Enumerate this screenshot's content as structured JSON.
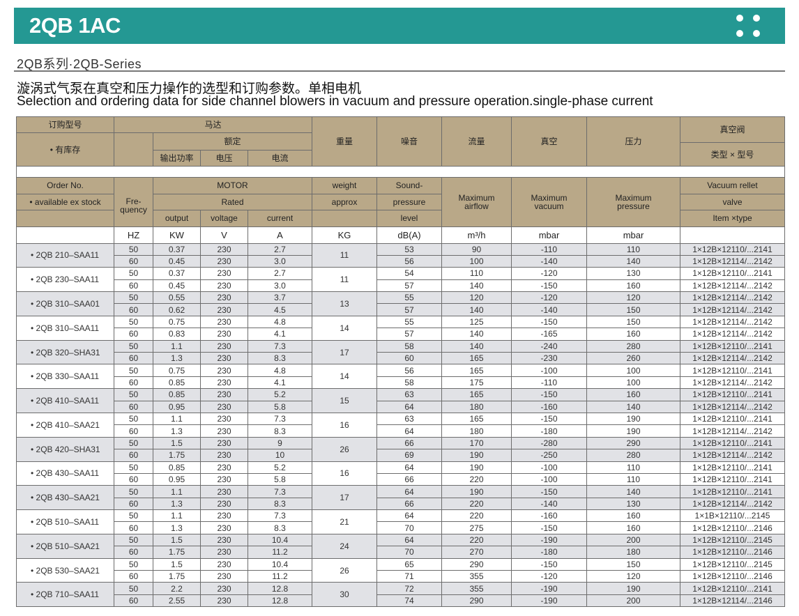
{
  "header": {
    "title": "2QB 1AC",
    "menu_icon": "four-dots-icon",
    "brand_color": "#249893"
  },
  "series": "2QB系列·2QB-Series",
  "title_cn": "漩涡式气泵在真空和压力操作的选型和订购参数。单相电机",
  "title_en": "Selection and ordering data for side channel blowers in vacuum and pressure operation.single-phase current",
  "table_cn": {
    "order": "订购型号",
    "stock": "• 有库存",
    "motor": "马达",
    "rated": "额定",
    "output": "输出功率",
    "voltage": "电压",
    "current": "电流",
    "weight": "重量",
    "noise": "噪音",
    "airflow": "流量",
    "vacuum": "真空",
    "pressure": "压力",
    "valve": "真空阀",
    "valve_type": "类型 × 型号"
  },
  "table_en": {
    "order": "Order No.",
    "stock": "• available ex stock",
    "frequency": "Fre-\nquency",
    "motor": "MOTOR",
    "rated": "Rated",
    "output": "output",
    "voltage": "voltage",
    "current": "current",
    "weight": "weight",
    "approx": "approx",
    "sound1": "Sound-",
    "sound2": "pressure",
    "sound3": "level",
    "airflow": "Maximum airflow",
    "vacuum": "Maximum vacuum",
    "pressure": "Maximum pressure",
    "valve1": "Vacuum rellet",
    "valve2": "valve",
    "valve3": "Item ×type"
  },
  "units": [
    "HZ",
    "KW",
    "V",
    "A",
    "KG",
    "dB(A)",
    "m³/h",
    "mbar",
    "mbar",
    ""
  ],
  "models": [
    {
      "order": "• 2QB 210–SAA11",
      "weight": "11",
      "rows": [
        [
          "50",
          "0.37",
          "230",
          "2.7",
          "53",
          "90",
          "-110",
          "110",
          "1×12B×12110/...2141"
        ],
        [
          "60",
          "0.45",
          "230",
          "3.0",
          "56",
          "100",
          "-140",
          "140",
          "1×12B×12114/...2142"
        ]
      ]
    },
    {
      "order": "• 2QB 230–SAA11",
      "weight": "11",
      "rows": [
        [
          "50",
          "0.37",
          "230",
          "2.7",
          "54",
          "110",
          "-120",
          "130",
          "1×12B×12110/...2141"
        ],
        [
          "60",
          "0.45",
          "230",
          "3.0",
          "57",
          "140",
          "-150",
          "160",
          "1×12B×12114/...2142"
        ]
      ]
    },
    {
      "order": "• 2QB 310–SAA01",
      "weight": "13",
      "rows": [
        [
          "50",
          "0.55",
          "230",
          "3.7",
          "55",
          "120",
          "-120",
          "120",
          "1×12B×12114/...2142"
        ],
        [
          "60",
          "0.62",
          "230",
          "4.5",
          "57",
          "140",
          "-140",
          "150",
          "1×12B×12114/...2142"
        ]
      ]
    },
    {
      "order": "• 2QB 310–SAA11",
      "weight": "14",
      "rows": [
        [
          "50",
          "0.75",
          "230",
          "4.8",
          "55",
          "125",
          "-150",
          "150",
          "1×12B×12114/...2142"
        ],
        [
          "60",
          "0.83",
          "230",
          "4.1",
          "57",
          "140",
          "-165",
          "160",
          "1×12B×12114/...2142"
        ]
      ]
    },
    {
      "order": "• 2QB 320–SHA31",
      "weight": "17",
      "rows": [
        [
          "50",
          "1.1",
          "230",
          "7.3",
          "58",
          "140",
          "-240",
          "280",
          "1×12B×12110/...2141"
        ],
        [
          "60",
          "1.3",
          "230",
          "8.3",
          "60",
          "165",
          "-230",
          "260",
          "1×12B×12114/...2142"
        ]
      ]
    },
    {
      "order": "• 2QB 330–SAA11",
      "weight": "14",
      "rows": [
        [
          "50",
          "0.75",
          "230",
          "4.8",
          "56",
          "165",
          "-100",
          "100",
          "1×12B×12110/...2141"
        ],
        [
          "60",
          "0.85",
          "230",
          "4.1",
          "58",
          "175",
          "-110",
          "100",
          "1×12B×12114/...2142"
        ]
      ]
    },
    {
      "order": "• 2QB 410–SAA11",
      "weight": "15",
      "rows": [
        [
          "50",
          "0.85",
          "230",
          "5.2",
          "63",
          "165",
          "-150",
          "160",
          "1×12B×12110/...2141"
        ],
        [
          "60",
          "0.95",
          "230",
          "5.8",
          "64",
          "180",
          "-160",
          "140",
          "1×12B×12114/...2142"
        ]
      ]
    },
    {
      "order": "• 2QB 410–SAA21",
      "weight": "16",
      "rows": [
        [
          "50",
          "1.1",
          "230",
          "7.3",
          "63",
          "165",
          "-150",
          "190",
          "1×12B×12110/...2141"
        ],
        [
          "60",
          "1.3",
          "230",
          "8.3",
          "64",
          "180",
          "-180",
          "190",
          "1×12B×12114/...2142"
        ]
      ]
    },
    {
      "order": "• 2QB 420–SHA31",
      "weight": "26",
      "rows": [
        [
          "50",
          "1.5",
          "230",
          "9",
          "66",
          "170",
          "-280",
          "290",
          "1×12B×12110/...2141"
        ],
        [
          "60",
          "1.75",
          "230",
          "10",
          "69",
          "190",
          "-250",
          "280",
          "1×12B×12114/...2142"
        ]
      ]
    },
    {
      "order": "• 2QB 430–SAA11",
      "weight": "16",
      "rows": [
        [
          "50",
          "0.85",
          "230",
          "5.2",
          "64",
          "190",
          "-100",
          "110",
          "1×12B×12110/...2141"
        ],
        [
          "60",
          "0.95",
          "230",
          "5.8",
          "66",
          "220",
          "-100",
          "110",
          "1×12B×12110/...2141"
        ]
      ]
    },
    {
      "order": "• 2QB 430–SAA21",
      "weight": "17",
      "rows": [
        [
          "50",
          "1.1",
          "230",
          "7.3",
          "64",
          "190",
          "-150",
          "140",
          "1×12B×12110/...2141"
        ],
        [
          "60",
          "1.3",
          "230",
          "8.3",
          "66",
          "220",
          "-140",
          "130",
          "1×12B×12114/...2142"
        ]
      ]
    },
    {
      "order": "• 2QB 510–SAA11",
      "weight": "21",
      "rows": [
        [
          "50",
          "1.1",
          "230",
          "7.3",
          "64",
          "220",
          "-160",
          "160",
          "1×1B×12110/...2145"
        ],
        [
          "60",
          "1.3",
          "230",
          "8.3",
          "70",
          "275",
          "-150",
          "160",
          "1×12B×12110/...2146"
        ]
      ]
    },
    {
      "order": "• 2QB 510–SAA21",
      "weight": "24",
      "rows": [
        [
          "50",
          "1.5",
          "230",
          "10.4",
          "64",
          "220",
          "-190",
          "200",
          "1×12B×12110/...2145"
        ],
        [
          "60",
          "1.75",
          "230",
          "11.2",
          "70",
          "270",
          "-180",
          "180",
          "1×12B×12110/...2146"
        ]
      ]
    },
    {
      "order": "• 2QB 530–SAA21",
      "weight": "26",
      "rows": [
        [
          "50",
          "1.5",
          "230",
          "10.4",
          "65",
          "290",
          "-150",
          "150",
          "1×12B×12110/...2145"
        ],
        [
          "60",
          "1.75",
          "230",
          "11.2",
          "71",
          "355",
          "-120",
          "120",
          "1×12B×12110/...2146"
        ]
      ]
    },
    {
      "order": "• 2QB 710–SAA11",
      "weight": "30",
      "rows": [
        [
          "50",
          "2.2",
          "230",
          "12.8",
          "72",
          "355",
          "-190",
          "190",
          "1×12B×12110/...2141"
        ],
        [
          "60",
          "2.55",
          "230",
          "12.8",
          "74",
          "290",
          "-190",
          "200",
          "1×12B×12114/...2146"
        ]
      ]
    }
  ]
}
